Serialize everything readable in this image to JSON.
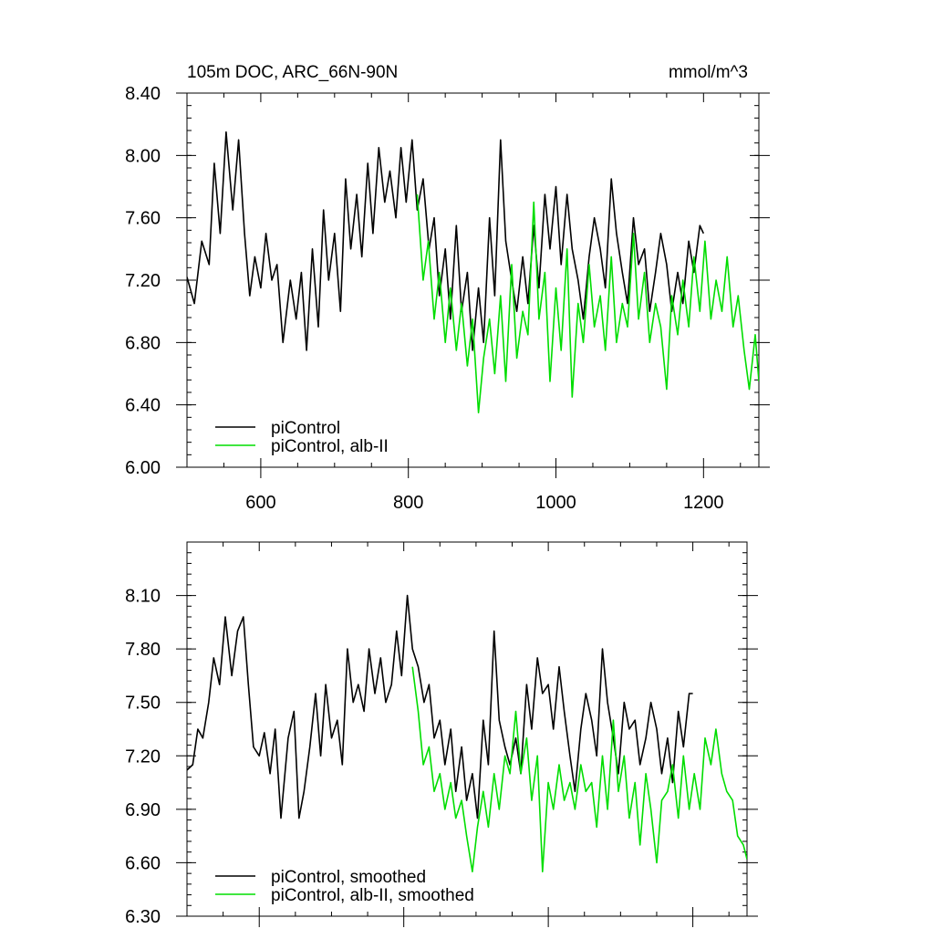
{
  "chart_data": [
    {
      "type": "line",
      "title": "105m DOC, ARC_66N-90N",
      "units": "mmol/m^3",
      "xlim": [
        500,
        1275
      ],
      "ylim": [
        6.0,
        8.4
      ],
      "x_ticks": [
        600,
        800,
        1000,
        1200
      ],
      "y_ticks": [
        "6.00",
        "6.40",
        "6.80",
        "7.20",
        "7.60",
        "8.00",
        "8.40"
      ],
      "y_minor_step": 0.08,
      "legend_position": "bottom-left",
      "series": [
        {
          "name": "piControl",
          "color": "#000000",
          "x": [
            500,
            510,
            520,
            530,
            537,
            545,
            553,
            562,
            570,
            578,
            585,
            592,
            600,
            607,
            615,
            622,
            630,
            640,
            648,
            655,
            662,
            670,
            678,
            685,
            692,
            700,
            708,
            715,
            722,
            730,
            737,
            745,
            752,
            760,
            768,
            775,
            783,
            790,
            797,
            805,
            812,
            820,
            828,
            835,
            842,
            850,
            857,
            865,
            872,
            880,
            887,
            895,
            902,
            910,
            917,
            925,
            932,
            940,
            947,
            955,
            962,
            970,
            977,
            985,
            992,
            1000,
            1007,
            1015,
            1022,
            1030,
            1037,
            1045,
            1052,
            1060,
            1067,
            1075,
            1082,
            1090,
            1097,
            1105,
            1112,
            1120,
            1127,
            1135,
            1142,
            1150,
            1157,
            1165,
            1172,
            1180,
            1187,
            1195,
            1200
          ],
          "values": [
            7.22,
            7.05,
            7.45,
            7.3,
            7.95,
            7.5,
            8.15,
            7.65,
            8.1,
            7.5,
            7.1,
            7.35,
            7.15,
            7.5,
            7.2,
            7.3,
            6.8,
            7.2,
            6.95,
            7.25,
            6.75,
            7.4,
            6.9,
            7.65,
            7.2,
            7.5,
            7.0,
            7.85,
            7.4,
            7.75,
            7.35,
            7.95,
            7.5,
            8.05,
            7.7,
            7.9,
            7.6,
            8.05,
            7.7,
            8.1,
            7.65,
            7.85,
            7.4,
            7.6,
            7.1,
            7.4,
            6.95,
            7.55,
            7.0,
            7.25,
            6.75,
            7.15,
            6.8,
            7.6,
            7.1,
            8.1,
            7.45,
            7.2,
            7.0,
            7.35,
            7.05,
            7.55,
            7.15,
            7.75,
            7.4,
            7.8,
            7.3,
            7.75,
            7.4,
            7.2,
            6.95,
            7.35,
            7.6,
            7.4,
            7.15,
            7.85,
            7.5,
            7.25,
            7.05,
            7.6,
            7.3,
            7.4,
            7.0,
            7.25,
            7.5,
            7.3,
            7.0,
            7.25,
            7.05,
            7.45,
            7.25,
            7.55,
            7.5
          ]
        },
        {
          "name": "piControl, alb-II",
          "color": "#00dd00",
          "x": [
            812,
            820,
            827,
            835,
            842,
            850,
            857,
            865,
            872,
            880,
            887,
            895,
            902,
            910,
            917,
            925,
            932,
            940,
            947,
            955,
            962,
            970,
            977,
            985,
            992,
            1000,
            1007,
            1015,
            1022,
            1030,
            1037,
            1045,
            1052,
            1060,
            1067,
            1075,
            1082,
            1090,
            1097,
            1105,
            1112,
            1120,
            1127,
            1135,
            1142,
            1150,
            1157,
            1165,
            1172,
            1180,
            1187,
            1195,
            1202,
            1210,
            1217,
            1225,
            1232,
            1240,
            1247,
            1255,
            1262,
            1270,
            1275
          ],
          "values": [
            7.75,
            7.2,
            7.45,
            6.95,
            7.25,
            6.8,
            7.15,
            6.75,
            7.05,
            6.65,
            6.95,
            6.35,
            6.7,
            6.95,
            6.6,
            7.1,
            6.55,
            7.3,
            6.7,
            7.0,
            6.85,
            7.7,
            6.95,
            7.25,
            6.55,
            7.15,
            6.75,
            7.4,
            6.45,
            7.05,
            6.8,
            7.3,
            6.9,
            7.1,
            6.75,
            7.35,
            6.8,
            7.05,
            6.9,
            7.5,
            6.95,
            7.25,
            6.8,
            7.05,
            6.9,
            6.5,
            7.1,
            6.85,
            7.2,
            6.9,
            7.35,
            7.0,
            7.45,
            6.95,
            7.2,
            7.0,
            7.35,
            6.9,
            7.1,
            6.75,
            6.5,
            6.85,
            6.55
          ]
        }
      ]
    },
    {
      "type": "line",
      "title": "",
      "xlim": [
        500,
        1275
      ],
      "ylim": [
        6.3,
        8.4
      ],
      "x_ticks": [
        600,
        800,
        1000,
        1200
      ],
      "y_ticks": [
        "6.30",
        "6.60",
        "6.90",
        "7.20",
        "7.50",
        "7.80",
        "8.10"
      ],
      "y_minor_step": 0.06,
      "legend_position": "bottom-left",
      "series": [
        {
          "name": "piControl, smoothed",
          "color": "#000000",
          "x": [
            500,
            508,
            515,
            522,
            530,
            537,
            545,
            553,
            562,
            570,
            578,
            585,
            592,
            600,
            607,
            615,
            622,
            630,
            640,
            648,
            655,
            662,
            670,
            678,
            685,
            692,
            700,
            708,
            715,
            722,
            730,
            737,
            745,
            752,
            760,
            768,
            775,
            783,
            790,
            797,
            805,
            812,
            820,
            828,
            835,
            842,
            850,
            857,
            865,
            872,
            880,
            887,
            895,
            902,
            910,
            917,
            925,
            932,
            940,
            947,
            955,
            962,
            970,
            977,
            985,
            992,
            1000,
            1007,
            1015,
            1022,
            1030,
            1037,
            1045,
            1052,
            1060,
            1067,
            1075,
            1082,
            1090,
            1097,
            1105,
            1112,
            1120,
            1127,
            1135,
            1142,
            1150,
            1157,
            1165,
            1172,
            1180,
            1187,
            1195,
            1200
          ],
          "values": [
            7.12,
            7.15,
            7.35,
            7.3,
            7.5,
            7.75,
            7.6,
            7.98,
            7.65,
            7.9,
            7.98,
            7.6,
            7.25,
            7.2,
            7.33,
            7.1,
            7.35,
            6.85,
            7.3,
            7.45,
            6.85,
            7.0,
            7.25,
            7.55,
            7.2,
            7.6,
            7.3,
            7.4,
            7.15,
            7.8,
            7.5,
            7.6,
            7.45,
            7.8,
            7.55,
            7.75,
            7.5,
            7.6,
            7.9,
            7.65,
            8.1,
            7.8,
            7.7,
            7.5,
            7.6,
            7.3,
            7.4,
            7.15,
            7.35,
            7.0,
            7.25,
            6.95,
            7.1,
            6.85,
            7.4,
            7.15,
            7.9,
            7.4,
            7.25,
            7.15,
            7.3,
            7.1,
            7.6,
            7.35,
            7.75,
            7.55,
            7.6,
            7.35,
            7.7,
            7.45,
            7.2,
            7.0,
            7.35,
            7.55,
            7.4,
            7.2,
            7.8,
            7.5,
            7.3,
            7.1,
            7.5,
            7.35,
            7.4,
            7.15,
            7.3,
            7.5,
            7.35,
            7.1,
            7.3,
            7.05,
            7.45,
            7.25,
            7.55,
            7.55
          ]
        },
        {
          "name": "piControl, alb-II, smoothed",
          "color": "#00dd00",
          "x": [
            812,
            820,
            827,
            835,
            842,
            850,
            857,
            865,
            872,
            880,
            887,
            895,
            902,
            910,
            917,
            925,
            932,
            940,
            947,
            955,
            962,
            970,
            977,
            985,
            992,
            1000,
            1007,
            1015,
            1022,
            1030,
            1037,
            1045,
            1052,
            1060,
            1067,
            1075,
            1082,
            1090,
            1097,
            1105,
            1112,
            1120,
            1127,
            1135,
            1142,
            1150,
            1157,
            1165,
            1172,
            1180,
            1187,
            1195,
            1202,
            1210,
            1217,
            1225,
            1232,
            1240,
            1247,
            1255,
            1262,
            1270,
            1275
          ],
          "values": [
            7.7,
            7.45,
            7.15,
            7.25,
            7.0,
            7.1,
            6.9,
            7.05,
            6.85,
            6.95,
            6.75,
            6.55,
            6.8,
            7.0,
            6.8,
            7.1,
            6.9,
            7.2,
            7.1,
            7.45,
            7.1,
            7.3,
            6.95,
            7.2,
            6.55,
            7.05,
            6.9,
            7.15,
            6.95,
            7.05,
            6.9,
            7.15,
            7.0,
            7.05,
            6.8,
            7.2,
            6.9,
            7.4,
            7.0,
            7.2,
            6.85,
            7.05,
            6.7,
            7.1,
            6.9,
            6.6,
            6.95,
            7.0,
            7.15,
            6.85,
            7.2,
            6.9,
            7.1,
            6.9,
            7.3,
            7.15,
            7.35,
            7.1,
            7.0,
            6.95,
            6.75,
            6.7,
            6.62
          ]
        }
      ]
    }
  ]
}
